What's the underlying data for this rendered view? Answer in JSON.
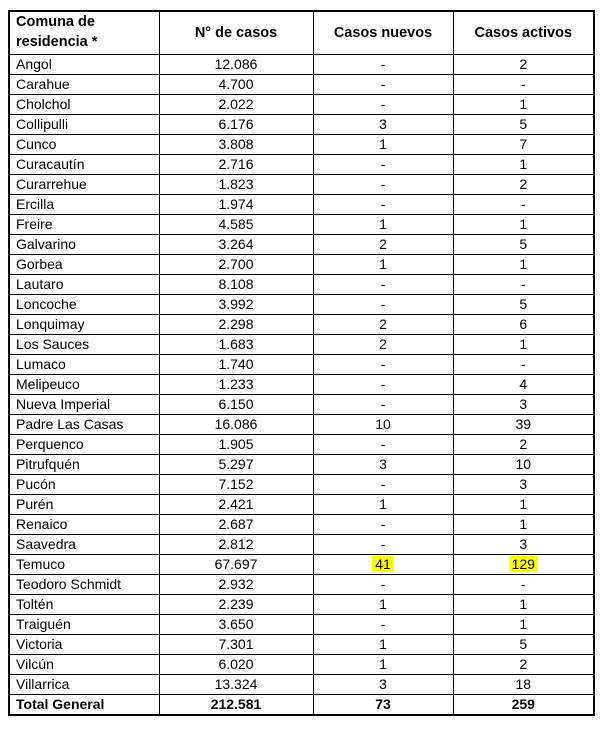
{
  "table": {
    "headers": [
      "Comuna de residencia *",
      "N° de casos",
      "Casos nuevos",
      "Casos activos"
    ],
    "highlight_color": "#ffff00",
    "rows": [
      {
        "comuna": "Angol",
        "casos": "12.086",
        "nuevos": "-",
        "activos": "2"
      },
      {
        "comuna": "Carahue",
        "casos": "4.700",
        "nuevos": "-",
        "activos": "-"
      },
      {
        "comuna": "Cholchol",
        "casos": "2.022",
        "nuevos": "-",
        "activos": "1"
      },
      {
        "comuna": "Collipulli",
        "casos": "6.176",
        "nuevos": "3",
        "activos": "5"
      },
      {
        "comuna": "Cunco",
        "casos": "3.808",
        "nuevos": "1",
        "activos": "7"
      },
      {
        "comuna": "Curacautín",
        "casos": "2.716",
        "nuevos": "-",
        "activos": "1"
      },
      {
        "comuna": "Curarrehue",
        "casos": "1.823",
        "nuevos": "-",
        "activos": "2"
      },
      {
        "comuna": "Ercilla",
        "casos": "1.974",
        "nuevos": "-",
        "activos": "-"
      },
      {
        "comuna": "Freire",
        "casos": "4.585",
        "nuevos": "1",
        "activos": "1"
      },
      {
        "comuna": "Galvarino",
        "casos": "3.264",
        "nuevos": "2",
        "activos": "5"
      },
      {
        "comuna": "Gorbea",
        "casos": "2.700",
        "nuevos": "1",
        "activos": "1"
      },
      {
        "comuna": "Lautaro",
        "casos": "8.108",
        "nuevos": "-",
        "activos": "-"
      },
      {
        "comuna": "Loncoche",
        "casos": "3.992",
        "nuevos": "-",
        "activos": "5"
      },
      {
        "comuna": "Lonquimay",
        "casos": "2.298",
        "nuevos": "2",
        "activos": "6"
      },
      {
        "comuna": "Los Sauces",
        "casos": "1.683",
        "nuevos": "2",
        "activos": "1"
      },
      {
        "comuna": "Lumaco",
        "casos": "1.740",
        "nuevos": "-",
        "activos": "-"
      },
      {
        "comuna": "Melipeuco",
        "casos": "1.233",
        "nuevos": "-",
        "activos": "4"
      },
      {
        "comuna": "Nueva Imperial",
        "casos": "6.150",
        "nuevos": "-",
        "activos": "3"
      },
      {
        "comuna": "Padre Las Casas",
        "casos": "16.086",
        "nuevos": "10",
        "activos": "39"
      },
      {
        "comuna": "Perquenco",
        "casos": "1.905",
        "nuevos": "-",
        "activos": "2"
      },
      {
        "comuna": "Pitrufquén",
        "casos": "5.297",
        "nuevos": "3",
        "activos": "10"
      },
      {
        "comuna": "Pucón",
        "casos": "7.152",
        "nuevos": "-",
        "activos": "3"
      },
      {
        "comuna": "Purén",
        "casos": "2.421",
        "nuevos": "1",
        "activos": "1"
      },
      {
        "comuna": "Renaico",
        "casos": "2.687",
        "nuevos": "-",
        "activos": "1"
      },
      {
        "comuna": "Saavedra",
        "casos": "2.812",
        "nuevos": "-",
        "activos": "3"
      },
      {
        "comuna": "Temuco",
        "casos": "67.697",
        "nuevos": "41",
        "activos": "129",
        "highlight_nuevos": true,
        "highlight_activos": true
      },
      {
        "comuna": "Teodoro Schmidt",
        "casos": "2.932",
        "nuevos": "-",
        "activos": "-"
      },
      {
        "comuna": "Toltén",
        "casos": "2.239",
        "nuevos": "1",
        "activos": "1"
      },
      {
        "comuna": "Traiguén",
        "casos": "3.650",
        "nuevos": "-",
        "activos": "1"
      },
      {
        "comuna": "Victoria",
        "casos": "7.301",
        "nuevos": "1",
        "activos": "5"
      },
      {
        "comuna": "Vilcún",
        "casos": "6.020",
        "nuevos": "1",
        "activos": "2"
      },
      {
        "comuna": "Villarrica",
        "casos": "13.324",
        "nuevos": "3",
        "activos": "18"
      }
    ],
    "total": {
      "comuna": "Total General",
      "casos": "212.581",
      "nuevos": "73",
      "activos": "259"
    }
  }
}
